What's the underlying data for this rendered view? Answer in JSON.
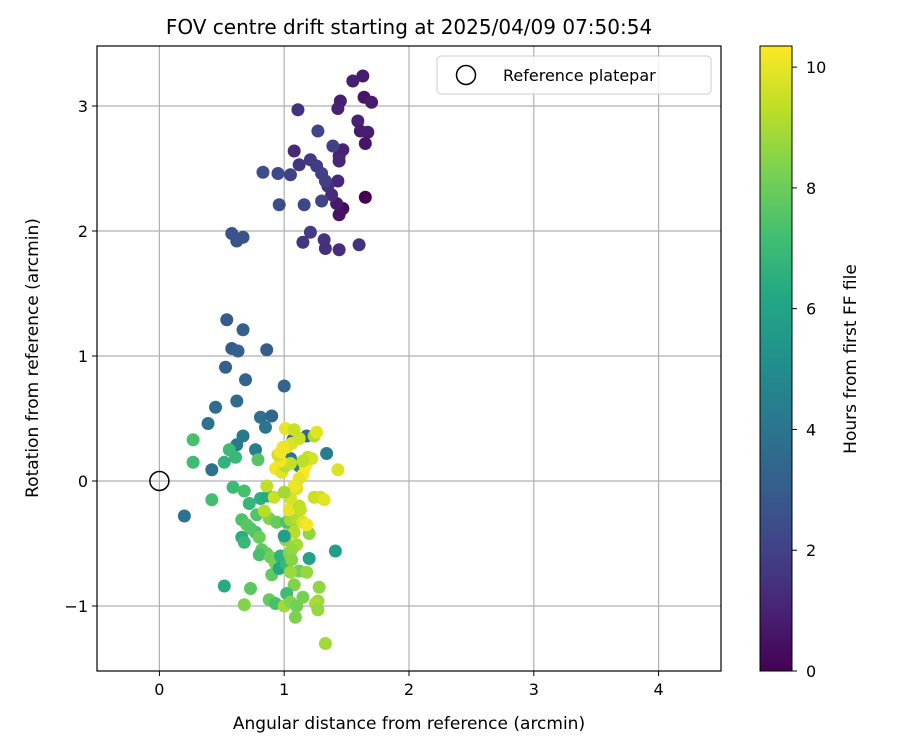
{
  "chart_data": {
    "type": "scatter",
    "title": "FOV centre drift starting at 2025/04/09 07:50:54",
    "xlabel": "Angular distance from reference (arcmin)",
    "ylabel": "Rotation from reference (arcmin)",
    "xlim": [
      -0.5,
      4.5
    ],
    "ylim": [
      -1.52,
      3.48
    ],
    "xticks": [
      0,
      1,
      2,
      3,
      4
    ],
    "yticks": [
      -1,
      0,
      1,
      2,
      3
    ],
    "xtick_labels": [
      "0",
      "1",
      "2",
      "3",
      "4"
    ],
    "ytick_labels": [
      "−1",
      "0",
      "1",
      "2",
      "3"
    ],
    "grid": true,
    "legend": {
      "placement": "top-right",
      "entries": [
        "Reference platepar"
      ]
    },
    "reference_point": {
      "x": 0,
      "y": 0,
      "label": "Reference platepar"
    },
    "colorbar": {
      "label": "Hours from first FF file",
      "colormap": "viridis",
      "range": [
        0,
        10.35
      ],
      "ticks": [
        0,
        2,
        4,
        6,
        8,
        10
      ],
      "tick_labels": [
        "0",
        "2",
        "4",
        "6",
        "8",
        "10"
      ]
    },
    "points": [
      {
        "x": 1.65,
        "y": 2.27,
        "h": 0.0
      },
      {
        "x": 1.47,
        "y": 2.18,
        "h": 0.3
      },
      {
        "x": 1.44,
        "y": 2.13,
        "h": 0.5
      },
      {
        "x": 1.42,
        "y": 2.22,
        "h": 0.7
      },
      {
        "x": 1.63,
        "y": 3.24,
        "h": 0.8
      },
      {
        "x": 1.55,
        "y": 3.2,
        "h": 0.9
      },
      {
        "x": 1.64,
        "y": 3.07,
        "h": 0.6
      },
      {
        "x": 1.7,
        "y": 3.03,
        "h": 0.8
      },
      {
        "x": 1.45,
        "y": 3.04,
        "h": 0.9
      },
      {
        "x": 1.43,
        "y": 2.98,
        "h": 1.0
      },
      {
        "x": 1.59,
        "y": 2.88,
        "h": 1.0
      },
      {
        "x": 1.61,
        "y": 2.8,
        "h": 0.8
      },
      {
        "x": 1.67,
        "y": 2.79,
        "h": 0.9
      },
      {
        "x": 1.65,
        "y": 2.7,
        "h": 0.6
      },
      {
        "x": 1.47,
        "y": 2.65,
        "h": 1.0
      },
      {
        "x": 1.44,
        "y": 2.6,
        "h": 1.0
      },
      {
        "x": 1.44,
        "y": 2.56,
        "h": 1.1
      },
      {
        "x": 1.43,
        "y": 2.4,
        "h": 1.2
      },
      {
        "x": 1.38,
        "y": 2.29,
        "h": 1.3
      },
      {
        "x": 1.35,
        "y": 2.36,
        "h": 1.4
      },
      {
        "x": 1.11,
        "y": 2.97,
        "h": 1.5
      },
      {
        "x": 1.08,
        "y": 2.64,
        "h": 1.2
      },
      {
        "x": 1.12,
        "y": 2.53,
        "h": 1.6
      },
      {
        "x": 1.21,
        "y": 2.57,
        "h": 1.7
      },
      {
        "x": 1.26,
        "y": 2.52,
        "h": 1.8
      },
      {
        "x": 1.3,
        "y": 2.46,
        "h": 1.9
      },
      {
        "x": 1.27,
        "y": 2.8,
        "h": 2.2
      },
      {
        "x": 1.39,
        "y": 2.68,
        "h": 2.0
      },
      {
        "x": 1.33,
        "y": 2.4,
        "h": 1.9
      },
      {
        "x": 1.3,
        "y": 2.24,
        "h": 2.1
      },
      {
        "x": 1.05,
        "y": 2.45,
        "h": 2.0
      },
      {
        "x": 0.95,
        "y": 2.46,
        "h": 2.3
      },
      {
        "x": 0.83,
        "y": 2.47,
        "h": 2.5
      },
      {
        "x": 0.96,
        "y": 2.21,
        "h": 2.4
      },
      {
        "x": 1.16,
        "y": 2.21,
        "h": 2.2
      },
      {
        "x": 1.21,
        "y": 1.99,
        "h": 1.8
      },
      {
        "x": 1.15,
        "y": 1.91,
        "h": 1.6
      },
      {
        "x": 1.32,
        "y": 1.93,
        "h": 1.5
      },
      {
        "x": 1.33,
        "y": 1.86,
        "h": 1.4
      },
      {
        "x": 1.44,
        "y": 1.85,
        "h": 1.3
      },
      {
        "x": 1.6,
        "y": 1.89,
        "h": 1.5
      },
      {
        "x": 0.58,
        "y": 1.98,
        "h": 2.6
      },
      {
        "x": 0.62,
        "y": 1.92,
        "h": 2.7
      },
      {
        "x": 0.67,
        "y": 1.95,
        "h": 2.6
      },
      {
        "x": 0.54,
        "y": 1.29,
        "h": 3.0
      },
      {
        "x": 0.67,
        "y": 1.21,
        "h": 3.1
      },
      {
        "x": 0.58,
        "y": 1.06,
        "h": 3.0
      },
      {
        "x": 0.63,
        "y": 1.04,
        "h": 3.2
      },
      {
        "x": 0.86,
        "y": 1.05,
        "h": 3.0
      },
      {
        "x": 0.53,
        "y": 0.91,
        "h": 3.1
      },
      {
        "x": 0.69,
        "y": 0.81,
        "h": 3.3
      },
      {
        "x": 1.0,
        "y": 0.76,
        "h": 3.4
      },
      {
        "x": 0.62,
        "y": 0.64,
        "h": 3.6
      },
      {
        "x": 0.45,
        "y": 0.59,
        "h": 3.7
      },
      {
        "x": 0.81,
        "y": 0.51,
        "h": 3.8
      },
      {
        "x": 0.9,
        "y": 0.52,
        "h": 3.4
      },
      {
        "x": 0.39,
        "y": 0.46,
        "h": 3.9
      },
      {
        "x": 0.85,
        "y": 0.43,
        "h": 4.0
      },
      {
        "x": 0.67,
        "y": 0.36,
        "h": 4.1
      },
      {
        "x": 0.62,
        "y": 0.29,
        "h": 4.2
      },
      {
        "x": 0.77,
        "y": 0.25,
        "h": 4.4
      },
      {
        "x": 1.34,
        "y": 0.22,
        "h": 4.3
      },
      {
        "x": 1.18,
        "y": 0.36,
        "h": 3.5
      },
      {
        "x": 1.07,
        "y": 0.33,
        "h": 3.6
      },
      {
        "x": 0.42,
        "y": 0.09,
        "h": 3.8
      },
      {
        "x": 0.2,
        "y": -0.28,
        "h": 3.9
      },
      {
        "x": 1.05,
        "y": 0.18,
        "h": 4.0
      },
      {
        "x": 1.12,
        "y": 0.12,
        "h": 4.5
      },
      {
        "x": 0.27,
        "y": 0.33,
        "h": 7.3
      },
      {
        "x": 0.27,
        "y": 0.15,
        "h": 7.1
      },
      {
        "x": 0.56,
        "y": 0.25,
        "h": 7.0
      },
      {
        "x": 0.61,
        "y": 0.19,
        "h": 6.9
      },
      {
        "x": 0.52,
        "y": 0.15,
        "h": 6.7
      },
      {
        "x": 0.59,
        "y": -0.05,
        "h": 7.0
      },
      {
        "x": 0.42,
        "y": -0.15,
        "h": 7.2
      },
      {
        "x": 0.79,
        "y": 0.17,
        "h": 7.6
      },
      {
        "x": 0.68,
        "y": -0.08,
        "h": 7.3
      },
      {
        "x": 0.72,
        "y": -0.18,
        "h": 6.8
      },
      {
        "x": 0.81,
        "y": -0.14,
        "h": 6.5
      },
      {
        "x": 0.87,
        "y": -0.12,
        "h": 6.3
      },
      {
        "x": 0.78,
        "y": -0.27,
        "h": 7.5
      },
      {
        "x": 0.88,
        "y": -0.3,
        "h": 8.4
      },
      {
        "x": 0.94,
        "y": -0.33,
        "h": 7.9
      },
      {
        "x": 0.66,
        "y": -0.31,
        "h": 7.4
      },
      {
        "x": 0.7,
        "y": -0.35,
        "h": 7.7
      },
      {
        "x": 0.77,
        "y": -0.41,
        "h": 7.2
      },
      {
        "x": 0.73,
        "y": -0.38,
        "h": 7.6
      },
      {
        "x": 0.66,
        "y": -0.45,
        "h": 6.4
      },
      {
        "x": 0.68,
        "y": -0.49,
        "h": 6.9
      },
      {
        "x": 0.8,
        "y": -0.45,
        "h": 8.0
      },
      {
        "x": 0.82,
        "y": -0.55,
        "h": 7.8
      },
      {
        "x": 0.86,
        "y": -0.58,
        "h": 7.9
      },
      {
        "x": 0.8,
        "y": -0.59,
        "h": 7.3
      },
      {
        "x": 0.89,
        "y": -0.61,
        "h": 8.1
      },
      {
        "x": 0.93,
        "y": -0.66,
        "h": 8.2
      },
      {
        "x": 0.97,
        "y": -0.6,
        "h": 6.6
      },
      {
        "x": 0.9,
        "y": -0.75,
        "h": 7.8
      },
      {
        "x": 0.96,
        "y": -0.7,
        "h": 6.2
      },
      {
        "x": 1.02,
        "y": -0.67,
        "h": 7.0
      },
      {
        "x": 1.04,
        "y": -0.58,
        "h": 8.3
      },
      {
        "x": 1.01,
        "y": -0.47,
        "h": 8.6
      },
      {
        "x": 1.06,
        "y": -0.36,
        "h": 8.8
      },
      {
        "x": 1.02,
        "y": -0.33,
        "h": 7.4
      },
      {
        "x": 1.05,
        "y": -0.31,
        "h": 8.9
      },
      {
        "x": 1.1,
        "y": -0.3,
        "h": 9.1
      },
      {
        "x": 1.08,
        "y": -0.41,
        "h": 9.2
      },
      {
        "x": 1.1,
        "y": -0.51,
        "h": 9.0
      },
      {
        "x": 1.06,
        "y": -0.55,
        "h": 8.7
      },
      {
        "x": 1.06,
        "y": -0.63,
        "h": 8.5
      },
      {
        "x": 1.0,
        "y": -0.44,
        "h": 5.8
      },
      {
        "x": 1.04,
        "y": -0.23,
        "h": 10.0
      },
      {
        "x": 1.12,
        "y": -0.2,
        "h": 9.3
      },
      {
        "x": 1.15,
        "y": -0.33,
        "h": 9.8
      },
      {
        "x": 1.2,
        "y": -0.42,
        "h": 8.6
      },
      {
        "x": 1.2,
        "y": -0.62,
        "h": 6.0
      },
      {
        "x": 1.12,
        "y": -0.72,
        "h": 8.1
      },
      {
        "x": 1.18,
        "y": -0.73,
        "h": 8.7
      },
      {
        "x": 1.05,
        "y": -0.73,
        "h": 8.8
      },
      {
        "x": 1.08,
        "y": -0.83,
        "h": 8.4
      },
      {
        "x": 1.02,
        "y": -0.9,
        "h": 7.1
      },
      {
        "x": 0.88,
        "y": -0.95,
        "h": 7.9
      },
      {
        "x": 0.93,
        "y": -0.98,
        "h": 7.3
      },
      {
        "x": 1.0,
        "y": -1.0,
        "h": 8.9
      },
      {
        "x": 1.05,
        "y": -0.97,
        "h": 8.4
      },
      {
        "x": 1.1,
        "y": -1.0,
        "h": 8.1
      },
      {
        "x": 1.15,
        "y": -0.93,
        "h": 8.2
      },
      {
        "x": 1.28,
        "y": -0.85,
        "h": 8.6
      },
      {
        "x": 1.27,
        "y": -0.96,
        "h": 8.8
      },
      {
        "x": 1.25,
        "y": -0.98,
        "h": 9.0
      },
      {
        "x": 1.27,
        "y": -1.03,
        "h": 8.7
      },
      {
        "x": 1.09,
        "y": -1.09,
        "h": 8.3
      },
      {
        "x": 1.33,
        "y": -1.3,
        "h": 8.9
      },
      {
        "x": 0.68,
        "y": -0.99,
        "h": 8.4
      },
      {
        "x": 0.73,
        "y": -0.86,
        "h": 7.7
      },
      {
        "x": 0.52,
        "y": -0.84,
        "h": 6.3
      },
      {
        "x": 1.41,
        "y": -0.56,
        "h": 5.8
      },
      {
        "x": 1.24,
        "y": -0.13,
        "h": 9.5
      },
      {
        "x": 1.29,
        "y": -0.13,
        "h": 9.6
      },
      {
        "x": 1.32,
        "y": -0.15,
        "h": 9.9
      },
      {
        "x": 1.18,
        "y": -0.35,
        "h": 10.2
      },
      {
        "x": 1.13,
        "y": -0.23,
        "h": 9.4
      },
      {
        "x": 1.05,
        "y": -0.14,
        "h": 9.7
      },
      {
        "x": 0.92,
        "y": -0.13,
        "h": 9.5
      },
      {
        "x": 1.1,
        "y": -0.06,
        "h": 9.8
      },
      {
        "x": 1.08,
        "y": -0.04,
        "h": 10.1
      },
      {
        "x": 0.86,
        "y": -0.04,
        "h": 9.3
      },
      {
        "x": 1.15,
        "y": 0.05,
        "h": 10.3
      },
      {
        "x": 1.12,
        "y": 0.02,
        "h": 10.0
      },
      {
        "x": 0.93,
        "y": 0.1,
        "h": 10.2
      },
      {
        "x": 0.98,
        "y": 0.07,
        "h": 9.9
      },
      {
        "x": 1.01,
        "y": 0.12,
        "h": 9.2
      },
      {
        "x": 1.05,
        "y": 0.14,
        "h": 9.4
      },
      {
        "x": 0.97,
        "y": 0.16,
        "h": 10.1
      },
      {
        "x": 0.95,
        "y": 0.21,
        "h": 9.6
      },
      {
        "x": 0.97,
        "y": 0.23,
        "h": 10.2
      },
      {
        "x": 1.02,
        "y": 0.27,
        "h": 9.9
      },
      {
        "x": 1.06,
        "y": 0.3,
        "h": 9.8
      },
      {
        "x": 1.12,
        "y": 0.34,
        "h": 9.6
      },
      {
        "x": 1.01,
        "y": 0.42,
        "h": 10.0
      },
      {
        "x": 1.17,
        "y": 0.12,
        "h": 10.3
      },
      {
        "x": 1.19,
        "y": 0.19,
        "h": 9.4
      },
      {
        "x": 1.22,
        "y": 0.18,
        "h": 9.7
      },
      {
        "x": 1.24,
        "y": 0.36,
        "h": 9.1
      },
      {
        "x": 1.26,
        "y": 0.39,
        "h": 9.9
      },
      {
        "x": 1.43,
        "y": 0.09,
        "h": 9.8
      },
      {
        "x": 1.08,
        "y": 0.41,
        "h": 9.5
      },
      {
        "x": 0.99,
        "y": 0.27,
        "h": 10.1
      },
      {
        "x": 1.15,
        "y": 0.16,
        "h": 9.3
      },
      {
        "x": 1.0,
        "y": -0.09,
        "h": 8.9
      },
      {
        "x": 0.84,
        "y": -0.24,
        "h": 9.2
      }
    ]
  }
}
